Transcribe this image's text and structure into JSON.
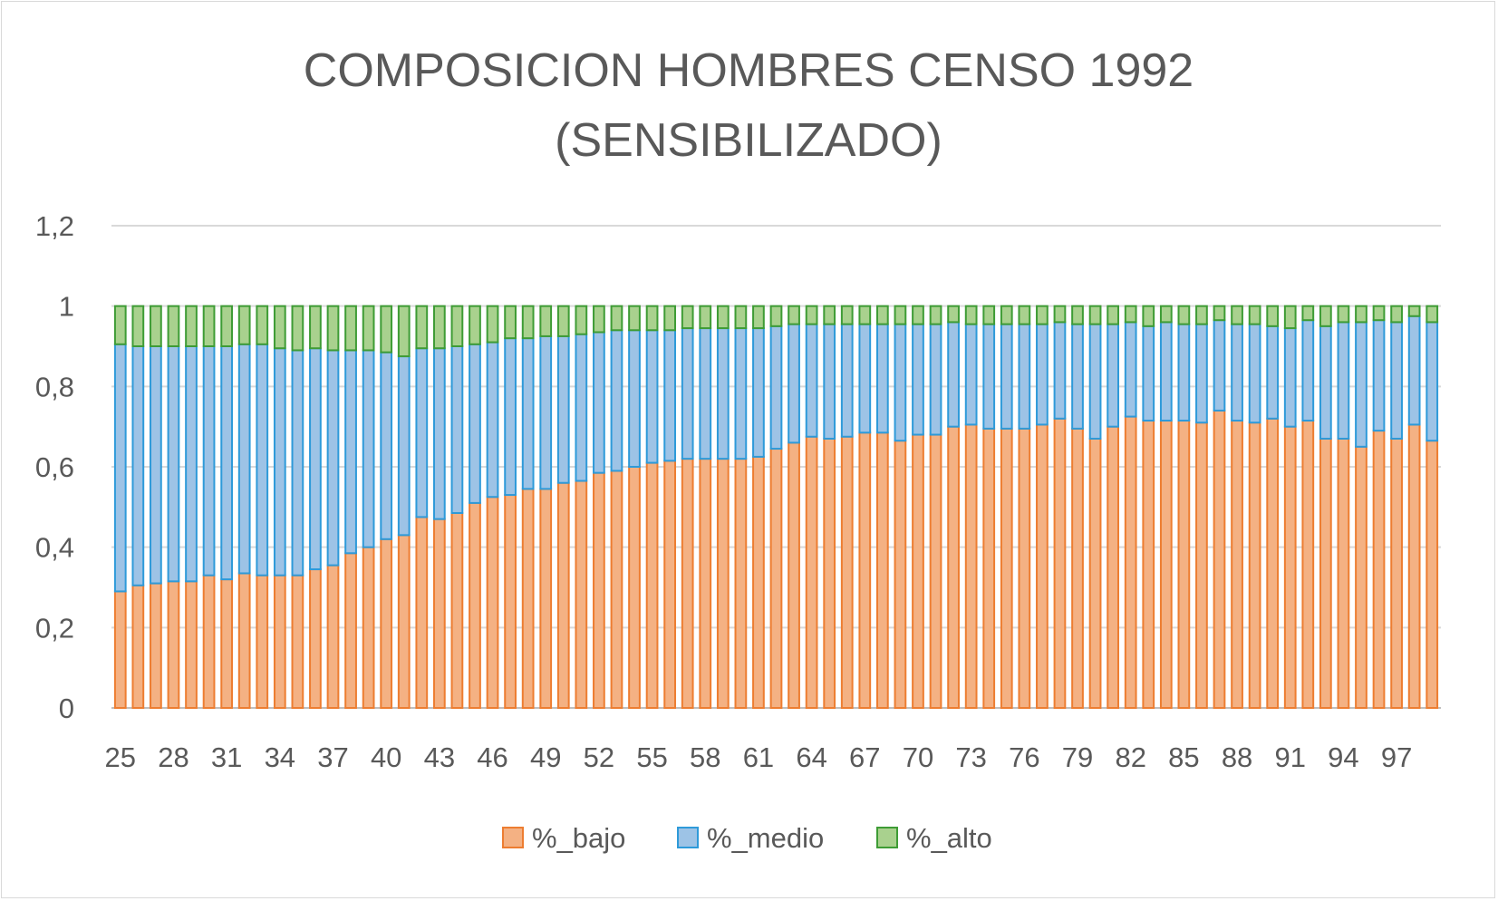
{
  "chart_data": {
    "type": "bar",
    "stacked": true,
    "title_lines": [
      "COMPOSICION HOMBRES CENSO 1992",
      "(SENSIBILIZADO)"
    ],
    "xlabel": "",
    "ylabel": "",
    "ylim": [
      0,
      1.2
    ],
    "y_ticks": [
      "0",
      "0,2",
      "0,4",
      "0,6",
      "0,8",
      "1",
      "1,2"
    ],
    "grid": true,
    "legend_position": "bottom",
    "categories": [
      25,
      26,
      27,
      28,
      29,
      30,
      31,
      32,
      33,
      34,
      35,
      36,
      37,
      38,
      39,
      40,
      41,
      42,
      43,
      44,
      45,
      46,
      47,
      48,
      49,
      50,
      51,
      52,
      53,
      54,
      55,
      56,
      57,
      58,
      59,
      60,
      61,
      62,
      63,
      64,
      65,
      66,
      67,
      68,
      69,
      70,
      71,
      72,
      73,
      74,
      75,
      76,
      77,
      78,
      79,
      80,
      81,
      82,
      83,
      84,
      85,
      86,
      87,
      88,
      89,
      90,
      91,
      92,
      93,
      94,
      95,
      96,
      97,
      98,
      99
    ],
    "x_tick_labels": [
      "25",
      "28",
      "31",
      "34",
      "37",
      "40",
      "43",
      "46",
      "49",
      "52",
      "55",
      "58",
      "61",
      "64",
      "67",
      "70",
      "73",
      "76",
      "79",
      "82",
      "85",
      "88",
      "91",
      "94",
      "97"
    ],
    "series": [
      {
        "name": "%_bajo",
        "color": "#f4b183",
        "edge": "#ed7d31",
        "values": [
          0.29,
          0.305,
          0.31,
          0.315,
          0.315,
          0.33,
          0.32,
          0.335,
          0.33,
          0.33,
          0.33,
          0.345,
          0.355,
          0.385,
          0.4,
          0.42,
          0.43,
          0.475,
          0.47,
          0.485,
          0.51,
          0.525,
          0.53,
          0.545,
          0.545,
          0.56,
          0.565,
          0.585,
          0.59,
          0.6,
          0.61,
          0.615,
          0.62,
          0.62,
          0.62,
          0.62,
          0.625,
          0.645,
          0.66,
          0.675,
          0.67,
          0.675,
          0.685,
          0.685,
          0.665,
          0.68,
          0.68,
          0.7,
          0.705,
          0.695,
          0.695,
          0.695,
          0.705,
          0.72,
          0.695,
          0.67,
          0.7,
          0.725,
          0.715,
          0.715,
          0.715,
          0.71,
          0.74,
          0.715,
          0.71,
          0.72,
          0.7,
          0.715,
          0.67,
          0.67,
          0.65,
          0.69,
          0.67,
          0.705,
          0.665
        ]
      },
      {
        "name": "%_medio",
        "color": "#9dc3e6",
        "edge": "#2e9ad9",
        "values": [
          0.615,
          0.595,
          0.59,
          0.585,
          0.585,
          0.57,
          0.58,
          0.57,
          0.575,
          0.565,
          0.56,
          0.55,
          0.535,
          0.505,
          0.49,
          0.465,
          0.445,
          0.42,
          0.425,
          0.415,
          0.395,
          0.385,
          0.39,
          0.375,
          0.38,
          0.365,
          0.365,
          0.35,
          0.35,
          0.34,
          0.33,
          0.325,
          0.325,
          0.325,
          0.325,
          0.325,
          0.32,
          0.305,
          0.295,
          0.28,
          0.285,
          0.28,
          0.27,
          0.27,
          0.29,
          0.275,
          0.275,
          0.26,
          0.25,
          0.26,
          0.26,
          0.26,
          0.25,
          0.24,
          0.26,
          0.285,
          0.255,
          0.235,
          0.235,
          0.245,
          0.24,
          0.245,
          0.225,
          0.24,
          0.245,
          0.23,
          0.245,
          0.25,
          0.28,
          0.29,
          0.31,
          0.275,
          0.29,
          0.27,
          0.295
        ]
      },
      {
        "name": "%_alto",
        "color": "#a9d18e",
        "edge": "#3e9c35",
        "values": [
          0.095,
          0.1,
          0.1,
          0.1,
          0.1,
          0.1,
          0.1,
          0.095,
          0.095,
          0.105,
          0.11,
          0.105,
          0.11,
          0.11,
          0.11,
          0.115,
          0.125,
          0.105,
          0.105,
          0.1,
          0.095,
          0.09,
          0.08,
          0.08,
          0.075,
          0.075,
          0.07,
          0.065,
          0.06,
          0.06,
          0.06,
          0.06,
          0.055,
          0.055,
          0.055,
          0.055,
          0.055,
          0.05,
          0.045,
          0.045,
          0.045,
          0.045,
          0.045,
          0.045,
          0.045,
          0.045,
          0.045,
          0.04,
          0.045,
          0.045,
          0.045,
          0.045,
          0.045,
          0.04,
          0.045,
          0.045,
          0.045,
          0.04,
          0.05,
          0.04,
          0.045,
          0.045,
          0.035,
          0.045,
          0.045,
          0.05,
          0.055,
          0.035,
          0.05,
          0.04,
          0.04,
          0.035,
          0.04,
          0.025,
          0.04
        ]
      }
    ]
  }
}
